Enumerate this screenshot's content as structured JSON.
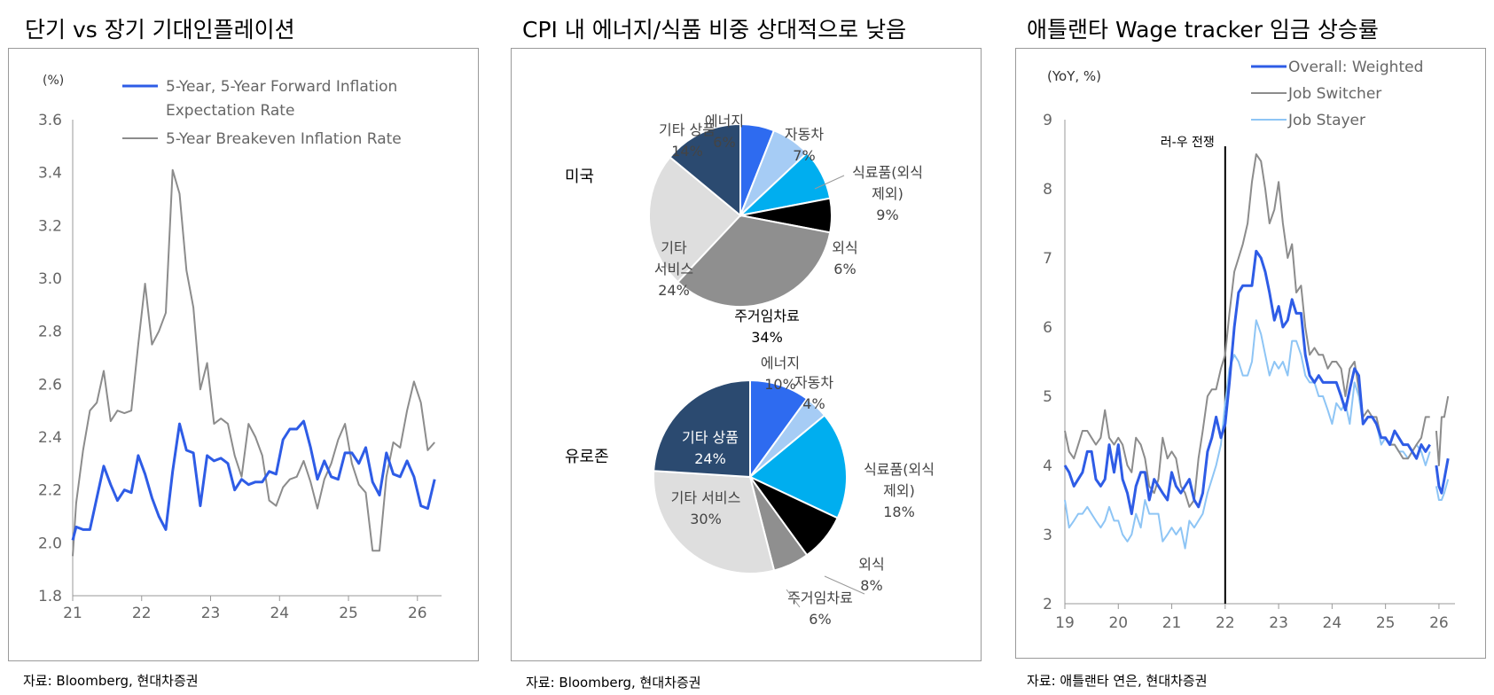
{
  "panel1": {
    "title": "단기 vs 장기 기대인플레이션",
    "source": "자료: Bloomberg, 현대차증권",
    "chart_data": {
      "type": "line",
      "ylabel": "(%)",
      "ylim": [
        1.8,
        3.6
      ],
      "yticks": [
        "1.8",
        "2.0",
        "2.2",
        "2.4",
        "2.6",
        "2.8",
        "3.0",
        "3.2",
        "3.4",
        "3.6"
      ],
      "xlim": [
        21.0,
        26.35
      ],
      "xticks": [
        "21",
        "22",
        "23",
        "24",
        "25",
        "26"
      ],
      "grid": false,
      "legend": "top",
      "series": [
        {
          "name_lines": [
            "5-Year, 5-Year Forward Inflation",
            "Expectation Rate"
          ],
          "name": "5-Year, 5-Year Forward Inflation Expectation Rate",
          "color": "#2e5ce6",
          "x": [
            21.0,
            21.05,
            21.15,
            21.25,
            21.35,
            21.45,
            21.55,
            21.65,
            21.75,
            21.85,
            21.95,
            22.05,
            22.15,
            22.25,
            22.35,
            22.45,
            22.55,
            22.65,
            22.75,
            22.85,
            22.95,
            23.05,
            23.15,
            23.25,
            23.35,
            23.45,
            23.55,
            23.65,
            23.75,
            23.85,
            23.95,
            24.05,
            24.15,
            24.25,
            24.35,
            24.45,
            24.55,
            24.65,
            24.75,
            24.85,
            24.95,
            25.05,
            25.15,
            25.25,
            25.35,
            25.45,
            25.55,
            25.65,
            25.75,
            25.85,
            25.95,
            26.05,
            26.15,
            26.25
          ],
          "y": [
            2.01,
            2.06,
            2.05,
            2.05,
            2.17,
            2.29,
            2.22,
            2.16,
            2.2,
            2.19,
            2.33,
            2.26,
            2.17,
            2.1,
            2.05,
            2.27,
            2.45,
            2.35,
            2.34,
            2.14,
            2.33,
            2.31,
            2.32,
            2.3,
            2.2,
            2.24,
            2.22,
            2.23,
            2.23,
            2.27,
            2.26,
            2.39,
            2.43,
            2.43,
            2.46,
            2.36,
            2.24,
            2.31,
            2.25,
            2.24,
            2.34,
            2.34,
            2.3,
            2.36,
            2.23,
            2.18,
            2.34,
            2.26,
            2.25,
            2.31,
            2.25,
            2.14,
            2.13,
            2.24
          ]
        },
        {
          "name_lines": [
            "5-Year Breakeven Inflation Rate"
          ],
          "name": "5-Year Breakeven Inflation Rate",
          "color": "#8c8c8c",
          "x": [
            21.0,
            21.05,
            21.15,
            21.25,
            21.35,
            21.45,
            21.55,
            21.65,
            21.75,
            21.85,
            21.95,
            22.05,
            22.15,
            22.25,
            22.35,
            22.45,
            22.55,
            22.65,
            22.75,
            22.85,
            22.95,
            23.05,
            23.15,
            23.25,
            23.35,
            23.45,
            23.55,
            23.65,
            23.75,
            23.85,
            23.95,
            24.05,
            24.15,
            24.25,
            24.35,
            24.45,
            24.55,
            24.65,
            24.75,
            24.85,
            24.95,
            25.05,
            25.15,
            25.25,
            25.35,
            25.45,
            25.55,
            25.65,
            25.75,
            25.85,
            25.95,
            26.05,
            26.15,
            26.25
          ],
          "y": [
            1.95,
            2.15,
            2.35,
            2.5,
            2.53,
            2.65,
            2.46,
            2.5,
            2.49,
            2.5,
            2.75,
            2.98,
            2.75,
            2.8,
            2.87,
            3.41,
            3.32,
            3.03,
            2.89,
            2.58,
            2.68,
            2.45,
            2.47,
            2.45,
            2.33,
            2.25,
            2.45,
            2.4,
            2.33,
            2.16,
            2.14,
            2.21,
            2.24,
            2.25,
            2.31,
            2.23,
            2.13,
            2.24,
            2.3,
            2.39,
            2.45,
            2.3,
            2.22,
            2.19,
            1.97,
            1.97,
            2.25,
            2.38,
            2.36,
            2.5,
            2.61,
            2.53,
            2.35,
            2.38
          ]
        }
      ]
    }
  },
  "panel2": {
    "title": "CPI 내 에너지/식품 비중 상대적으로 낮음",
    "source": "자료: Bloomberg, 현대차증권",
    "chart_data": [
      {
        "type": "pie",
        "title": "미국",
        "slices": [
          {
            "label": "에너지",
            "value": 6,
            "color": "#2e6bf0"
          },
          {
            "label": "자동차",
            "value": 7,
            "color": "#a6ccf5"
          },
          {
            "label": "식료품(외식 제외)",
            "value": 9,
            "color": "#00aeef"
          },
          {
            "label": "외식",
            "value": 6,
            "color": "#000000"
          },
          {
            "label": "주거임차료",
            "value": 34,
            "color": "#8f8f8f"
          },
          {
            "label": "기타 서비스",
            "value": 24,
            "color": "#dedede"
          },
          {
            "label": "기타 상품",
            "value": 14,
            "color": "#2b4a70"
          }
        ]
      },
      {
        "type": "pie",
        "title": "유로존",
        "slices": [
          {
            "label": "에너지",
            "value": 10,
            "color": "#2e6bf0"
          },
          {
            "label": "자동차",
            "value": 4,
            "color": "#a6ccf5"
          },
          {
            "label": "식료품(외식 제외)",
            "value": 18,
            "color": "#00aeef"
          },
          {
            "label": "외식",
            "value": 8,
            "color": "#000000"
          },
          {
            "label": "주거임차료",
            "value": 6,
            "color": "#8f8f8f"
          },
          {
            "label": "기타 서비스",
            "value": 30,
            "color": "#dedede"
          },
          {
            "label": "기타 상품",
            "value": 24,
            "color": "#2b4a70"
          }
        ]
      }
    ],
    "pie_labels": {
      "us": [
        {
          "lines": [
            "에너지",
            "6%"
          ]
        },
        {
          "lines": [
            "자동차",
            "7%"
          ]
        },
        {
          "lines": [
            "식료품(외식",
            "제외)",
            "9%"
          ]
        },
        {
          "lines": [
            "외식",
            "6%"
          ]
        },
        {
          "lines": [
            "주거임차료",
            "34%"
          ]
        },
        {
          "lines": [
            "기타",
            "서비스",
            "24%"
          ]
        },
        {
          "lines": [
            "기타 상품",
            "14%"
          ]
        }
      ],
      "eu": [
        {
          "lines": [
            "에너지",
            "10%"
          ]
        },
        {
          "lines": [
            "자동차",
            "4%"
          ]
        },
        {
          "lines": [
            "식료품(외식",
            "제외)",
            "18%"
          ]
        },
        {
          "lines": [
            "외식",
            "8%"
          ]
        },
        {
          "lines": [
            "주거임차료",
            "6%"
          ]
        },
        {
          "lines": [
            "기타 서비스",
            "30%"
          ]
        },
        {
          "lines": [
            "기타 상품",
            "24%"
          ]
        }
      ]
    }
  },
  "panel3": {
    "title": "애틀랜타 Wage tracker 임금 상승률",
    "source": "자료: 애틀랜타 연은, 현대차증권",
    "chart_data": {
      "type": "line",
      "ylabel": "(YoY, %)",
      "ylim": [
        2,
        9
      ],
      "yticks": [
        "2",
        "3",
        "4",
        "5",
        "6",
        "7",
        "8",
        "9"
      ],
      "xlim": [
        19.0,
        26.3
      ],
      "xticks": [
        "19",
        "20",
        "21",
        "22",
        "23",
        "24",
        "25",
        "26"
      ],
      "grid": false,
      "legend": "top-right",
      "annotation": {
        "label": "러-우 전쟁",
        "x": 22.0
      },
      "series": [
        {
          "name": "Overall: Weighted",
          "color": "#2e5ce6",
          "x": [
            19.0,
            19.08,
            19.17,
            19.25,
            19.33,
            19.42,
            19.5,
            19.58,
            19.67,
            19.75,
            19.83,
            19.92,
            20.0,
            20.08,
            20.17,
            20.25,
            20.33,
            20.42,
            20.5,
            20.58,
            20.67,
            20.75,
            20.83,
            20.92,
            21.0,
            21.08,
            21.17,
            21.25,
            21.33,
            21.42,
            21.5,
            21.58,
            21.67,
            21.75,
            21.83,
            21.92,
            22.0,
            22.08,
            22.17,
            22.25,
            22.33,
            22.42,
            22.5,
            22.58,
            22.67,
            22.75,
            22.83,
            22.92,
            23.0,
            23.08,
            23.17,
            23.25,
            23.33,
            23.42,
            23.5,
            23.58,
            23.67,
            23.75,
            23.83,
            23.92,
            24.0,
            24.08,
            24.17,
            24.25,
            24.33,
            24.42,
            24.5,
            24.58,
            24.67,
            24.75,
            24.83,
            24.92,
            25.0,
            25.08,
            25.17,
            25.25,
            25.33,
            25.42,
            25.5,
            25.58,
            25.67,
            25.75,
            25.83
          ],
          "y": [
            4.0,
            3.9,
            3.7,
            3.8,
            3.9,
            4.2,
            4.2,
            3.8,
            3.7,
            3.8,
            4.3,
            3.9,
            4.3,
            3.8,
            3.6,
            3.3,
            3.7,
            3.9,
            3.9,
            3.5,
            3.8,
            3.7,
            3.6,
            3.5,
            3.9,
            3.7,
            3.6,
            3.7,
            3.8,
            3.5,
            3.4,
            3.6,
            4.2,
            4.4,
            4.7,
            4.4,
            4.6,
            5.2,
            6.0,
            6.5,
            6.6,
            6.6,
            6.6,
            7.1,
            7.0,
            6.8,
            6.5,
            6.1,
            6.3,
            6.0,
            6.1,
            6.4,
            6.2,
            6.2,
            5.6,
            5.3,
            5.2,
            5.3,
            5.2,
            5.2,
            5.2,
            5.2,
            5.0,
            4.8,
            5.1,
            5.4,
            5.3,
            4.6,
            4.7,
            4.7,
            4.6,
            4.4,
            4.4,
            4.3,
            4.5,
            4.4,
            4.3,
            4.3,
            4.2,
            4.1,
            4.3,
            4.2,
            4.3
          ]
        },
        {
          "name": "Job Switcher",
          "color": "#8c8c8c",
          "x": [
            19.0,
            19.08,
            19.17,
            19.25,
            19.33,
            19.42,
            19.5,
            19.58,
            19.67,
            19.75,
            19.83,
            19.92,
            20.0,
            20.08,
            20.17,
            20.25,
            20.33,
            20.42,
            20.5,
            20.58,
            20.67,
            20.75,
            20.83,
            20.92,
            21.0,
            21.08,
            21.17,
            21.25,
            21.33,
            21.42,
            21.5,
            21.58,
            21.67,
            21.75,
            21.83,
            21.92,
            22.0,
            22.08,
            22.17,
            22.25,
            22.33,
            22.42,
            22.5,
            22.58,
            22.67,
            22.75,
            22.83,
            22.92,
            23.0,
            23.08,
            23.17,
            23.25,
            23.33,
            23.42,
            23.5,
            23.58,
            23.67,
            23.75,
            23.83,
            23.92,
            24.0,
            24.08,
            24.17,
            24.25,
            24.33,
            24.42,
            24.5,
            24.58,
            24.67,
            24.75,
            24.83,
            24.92,
            25.0,
            25.08,
            25.17,
            25.25,
            25.33,
            25.42,
            25.5,
            25.58,
            25.67,
            25.75,
            25.83
          ],
          "y": [
            4.5,
            4.2,
            4.1,
            4.3,
            4.5,
            4.5,
            4.4,
            4.3,
            4.4,
            4.8,
            4.4,
            4.3,
            4.4,
            4.3,
            4.0,
            3.9,
            4.4,
            4.3,
            4.1,
            3.7,
            3.6,
            3.8,
            4.4,
            4.1,
            4.2,
            4.1,
            3.7,
            3.6,
            3.4,
            3.5,
            4.1,
            4.5,
            5.0,
            5.1,
            5.1,
            5.4,
            5.6,
            6.2,
            6.8,
            7.0,
            7.2,
            7.5,
            8.1,
            8.5,
            8.4,
            8.0,
            7.5,
            7.7,
            8.1,
            7.5,
            7.0,
            7.2,
            6.5,
            6.6,
            6.0,
            5.6,
            5.7,
            5.6,
            5.6,
            5.4,
            5.5,
            5.5,
            5.4,
            5.0,
            5.4,
            5.5,
            5.1,
            4.7,
            4.8,
            4.7,
            4.7,
            4.4,
            4.4,
            4.3,
            4.3,
            4.2,
            4.1,
            4.1,
            4.2,
            4.3,
            4.4,
            4.7,
            4.7
          ]
        },
        {
          "name": "Job Stayer",
          "color": "#8ec5f5",
          "x": [
            19.0,
            19.08,
            19.17,
            19.25,
            19.33,
            19.42,
            19.5,
            19.58,
            19.67,
            19.75,
            19.83,
            19.92,
            20.0,
            20.08,
            20.17,
            20.25,
            20.33,
            20.42,
            20.5,
            20.58,
            20.67,
            20.75,
            20.83,
            20.92,
            21.0,
            21.08,
            21.17,
            21.25,
            21.33,
            21.42,
            21.5,
            21.58,
            21.67,
            21.75,
            21.83,
            21.92,
            22.0,
            22.08,
            22.17,
            22.25,
            22.33,
            22.42,
            22.5,
            22.58,
            22.67,
            22.75,
            22.83,
            22.92,
            23.0,
            23.08,
            23.17,
            23.25,
            23.33,
            23.42,
            23.5,
            23.58,
            23.67,
            23.75,
            23.83,
            23.92,
            24.0,
            24.08,
            24.17,
            24.25,
            24.33,
            24.42,
            24.5,
            24.58,
            24.67,
            24.75,
            24.83,
            24.92,
            25.0,
            25.08,
            25.17,
            25.25,
            25.33,
            25.42,
            25.5,
            25.58,
            25.67,
            25.75,
            25.83
          ],
          "y": [
            3.5,
            3.1,
            3.2,
            3.3,
            3.3,
            3.4,
            3.3,
            3.2,
            3.1,
            3.2,
            3.4,
            3.2,
            3.2,
            3.0,
            2.9,
            3.0,
            3.3,
            3.1,
            3.5,
            3.3,
            3.3,
            3.3,
            2.9,
            3.0,
            3.1,
            3.0,
            3.1,
            2.8,
            3.2,
            3.1,
            3.2,
            3.3,
            3.6,
            3.8,
            4.0,
            4.3,
            4.9,
            5.4,
            5.6,
            5.5,
            5.3,
            5.3,
            5.5,
            6.1,
            5.9,
            5.6,
            5.3,
            5.5,
            5.4,
            5.5,
            5.3,
            5.8,
            5.8,
            5.6,
            5.3,
            5.2,
            5.2,
            5.0,
            5.0,
            4.8,
            4.6,
            4.9,
            4.8,
            4.9,
            4.6,
            5.2,
            5.0,
            4.6,
            4.7,
            4.7,
            4.6,
            4.3,
            4.4,
            4.3,
            4.3,
            4.2,
            4.2,
            4.1,
            4.2,
            4.3,
            4.2,
            4.0,
            4.2
          ]
        }
      ],
      "tail_series": [
        {
          "name": "Overall: Weighted",
          "x": [
            25.95,
            26.0,
            26.05,
            26.1,
            26.17
          ],
          "y": [
            4.0,
            3.7,
            3.6,
            3.8,
            4.1
          ]
        },
        {
          "name": "Job Switcher",
          "x": [
            25.95,
            26.0,
            26.05,
            26.1,
            26.17
          ],
          "y": [
            4.5,
            4.0,
            4.7,
            4.7,
            5.0
          ]
        },
        {
          "name": "Job Stayer",
          "x": [
            25.95,
            26.0,
            26.05,
            26.1,
            26.17
          ],
          "y": [
            3.7,
            3.5,
            3.5,
            3.6,
            3.8
          ]
        }
      ]
    }
  }
}
